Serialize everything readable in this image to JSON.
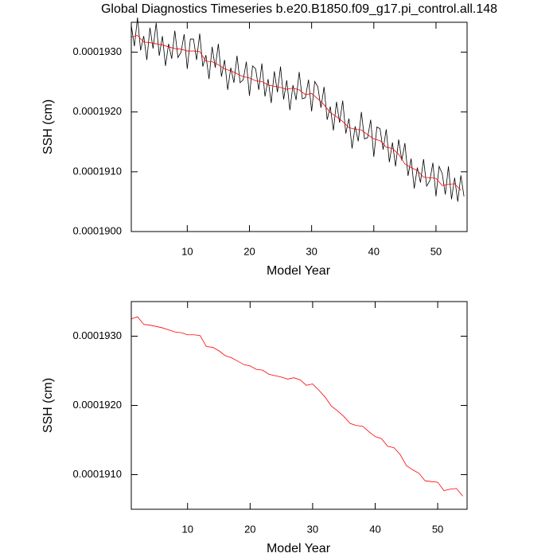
{
  "chart_data": [
    {
      "type": "line",
      "title": "Global Diagnostics Timeseries b.e20.B1850.f09_g17.pi_control.all.148",
      "xlabel": "Model Year",
      "ylabel": "SSH (cm)",
      "xlim": [
        1,
        55
      ],
      "ylim": [
        0.00019,
        0.0001935
      ],
      "xticks": [
        10,
        20,
        30,
        40,
        50
      ],
      "yticks": [
        {
          "value": 0.00019,
          "label": "0.0001900"
        },
        {
          "value": 0.000191,
          "label": "0.0001910"
        },
        {
          "value": 0.000192,
          "label": "0.0001920"
        },
        {
          "value": 0.000193,
          "label": "0.0001930"
        }
      ],
      "series": [
        {
          "color": "#000000",
          "x": [
            1,
            1.5,
            2,
            2.5,
            3,
            3.5,
            4,
            4.5,
            5,
            5.5,
            6,
            6.5,
            7,
            7.5,
            8,
            8.5,
            9,
            9.5,
            10,
            10.5,
            11,
            11.5,
            12,
            12.5,
            13,
            13.5,
            14,
            14.5,
            15,
            15.5,
            16,
            16.5,
            17,
            17.5,
            18,
            18.5,
            19,
            19.5,
            20,
            20.5,
            21,
            21.5,
            22,
            22.5,
            23,
            23.5,
            24,
            24.5,
            25,
            25.5,
            26,
            26.5,
            27,
            27.5,
            28,
            28.5,
            29,
            29.5,
            30,
            30.5,
            31,
            31.5,
            32,
            32.5,
            33,
            33.5,
            34,
            34.5,
            35,
            35.5,
            36,
            36.5,
            37,
            37.5,
            38,
            38.5,
            39,
            39.5,
            40,
            40.5,
            41,
            41.5,
            42,
            42.5,
            43,
            43.5,
            44,
            44.5,
            45,
            45.5,
            46,
            46.5,
            47,
            47.5,
            48,
            48.5,
            49,
            49.5,
            50,
            50.5,
            51,
            51.5,
            52,
            52.5,
            53,
            53.5,
            54,
            54.5
          ],
          "values": [
            0.00019345,
            0.0001931,
            0.00019358,
            0.00019303,
            0.00019327,
            0.00019287,
            0.00019341,
            0.00019306,
            0.00019349,
            0.00019294,
            0.00019327,
            0.00019277,
            0.00019314,
            0.00019289,
            0.00019336,
            0.00019291,
            0.000193,
            0.0001933,
            0.00019272,
            0.00019322,
            0.00019322,
            0.00019287,
            0.00019331,
            0.00019276,
            0.00019295,
            0.00019255,
            0.00019309,
            0.00019274,
            0.00019314,
            0.00019259,
            0.00019287,
            0.00019237,
            0.00019274,
            0.00019249,
            0.00019294,
            0.00019249,
            0.00019254,
            0.00019284,
            0.00019227,
            0.00019277,
            0.00019272,
            0.00019237,
            0.00019281,
            0.00019226,
            0.00019255,
            0.00019215,
            0.00019268,
            0.00019233,
            0.00019276,
            0.00019221,
            0.00019253,
            0.00019203,
            0.00019245,
            0.0001922,
            0.00019267,
            0.00019222,
            0.00019224,
            0.00019254,
            0.00019201,
            0.00019251,
            0.00019242,
            0.00019207,
            0.00019242,
            0.00019187,
            0.00019209,
            0.00019169,
            0.00019217,
            0.00019182,
            0.00019219,
            0.00019164,
            0.00019189,
            0.00019139,
            0.00019176,
            0.00019151,
            0.000192,
            0.00019155,
            0.00019157,
            0.00019187,
            0.00019125,
            0.00019175,
            0.00019172,
            0.00019137,
            0.00019171,
            0.00019116,
            0.00019149,
            0.00019109,
            0.00019154,
            0.00019119,
            0.00019148,
            0.00019093,
            0.00019122,
            0.00019072,
            0.00019107,
            0.00019082,
            0.00019121,
            0.00019076,
            0.00019085,
            0.00019115,
            0.00019059,
            0.00019109,
            0.00019097,
            0.00019062,
            0.00019109,
            0.00019054,
            0.0001909,
            0.0001905,
            0.00019094,
            0.00019059
          ]
        },
        {
          "color": "#ff0000",
          "x": [
            1,
            2,
            3,
            4,
            5,
            6,
            7,
            8,
            9,
            10,
            11,
            12,
            13,
            14,
            15,
            16,
            17,
            18,
            19,
            20,
            21,
            22,
            23,
            24,
            25,
            26,
            27,
            28,
            29,
            30,
            31,
            32,
            33,
            34,
            35,
            36,
            37,
            38,
            39,
            40,
            41,
            42,
            43,
            44,
            45,
            46,
            47,
            48,
            49,
            50,
            51,
            52,
            53,
            54
          ],
          "values": [
            0.00019325,
            0.00019328,
            0.00019317,
            0.00019316,
            0.00019314,
            0.00019312,
            0.00019309,
            0.00019306,
            0.00019305,
            0.00019302,
            0.00019302,
            0.00019301,
            0.00019285,
            0.00019284,
            0.00019279,
            0.00019272,
            0.00019269,
            0.00019264,
            0.00019259,
            0.00019257,
            0.00019252,
            0.00019251,
            0.00019245,
            0.00019243,
            0.00019241,
            0.00019238,
            0.0001924,
            0.00019237,
            0.00019229,
            0.00019231,
            0.00019222,
            0.00019212,
            0.00019199,
            0.00019192,
            0.00019184,
            0.00019174,
            0.00019171,
            0.0001917,
            0.00019162,
            0.00019155,
            0.00019152,
            0.00019141,
            0.00019139,
            0.00019129,
            0.00019113,
            0.00019107,
            0.00019102,
            0.00019091,
            0.0001909,
            0.00019089,
            0.00019077,
            0.00019079,
            0.0001908,
            0.00019069
          ]
        }
      ]
    },
    {
      "type": "line",
      "xlabel": "Model Year",
      "ylabel": "SSH (cm)",
      "xlim": [
        1,
        54.7
      ],
      "ylim": [
        0.0001905,
        0.0001935
      ],
      "xticks": [
        10,
        20,
        30,
        40,
        50
      ],
      "yticks": [
        {
          "value": 0.000191,
          "label": "0.0001910"
        },
        {
          "value": 0.000192,
          "label": "0.0001920"
        },
        {
          "value": 0.000193,
          "label": "0.0001930"
        }
      ],
      "series": [
        {
          "color": "#ff0000",
          "x": [
            1,
            2,
            3,
            4,
            5,
            6,
            7,
            8,
            9,
            10,
            11,
            12,
            13,
            14,
            15,
            16,
            17,
            18,
            19,
            20,
            21,
            22,
            23,
            24,
            25,
            26,
            27,
            28,
            29,
            30,
            31,
            32,
            33,
            34,
            35,
            36,
            37,
            38,
            39,
            40,
            41,
            42,
            43,
            44,
            45,
            46,
            47,
            48,
            49,
            50,
            51,
            52,
            53,
            54
          ],
          "values": [
            0.00019325,
            0.00019328,
            0.00019317,
            0.00019316,
            0.00019314,
            0.00019312,
            0.00019309,
            0.00019306,
            0.00019305,
            0.00019302,
            0.00019302,
            0.00019301,
            0.00019285,
            0.00019284,
            0.00019279,
            0.00019272,
            0.00019269,
            0.00019264,
            0.00019259,
            0.00019257,
            0.00019252,
            0.00019251,
            0.00019245,
            0.00019243,
            0.00019241,
            0.00019238,
            0.0001924,
            0.00019237,
            0.00019229,
            0.00019231,
            0.00019222,
            0.00019212,
            0.00019199,
            0.00019192,
            0.00019184,
            0.00019174,
            0.00019171,
            0.0001917,
            0.00019162,
            0.00019155,
            0.00019152,
            0.00019141,
            0.00019139,
            0.00019129,
            0.00019113,
            0.00019107,
            0.00019102,
            0.00019091,
            0.0001909,
            0.00019089,
            0.00019077,
            0.00019079,
            0.0001908,
            0.00019069
          ]
        }
      ]
    }
  ]
}
